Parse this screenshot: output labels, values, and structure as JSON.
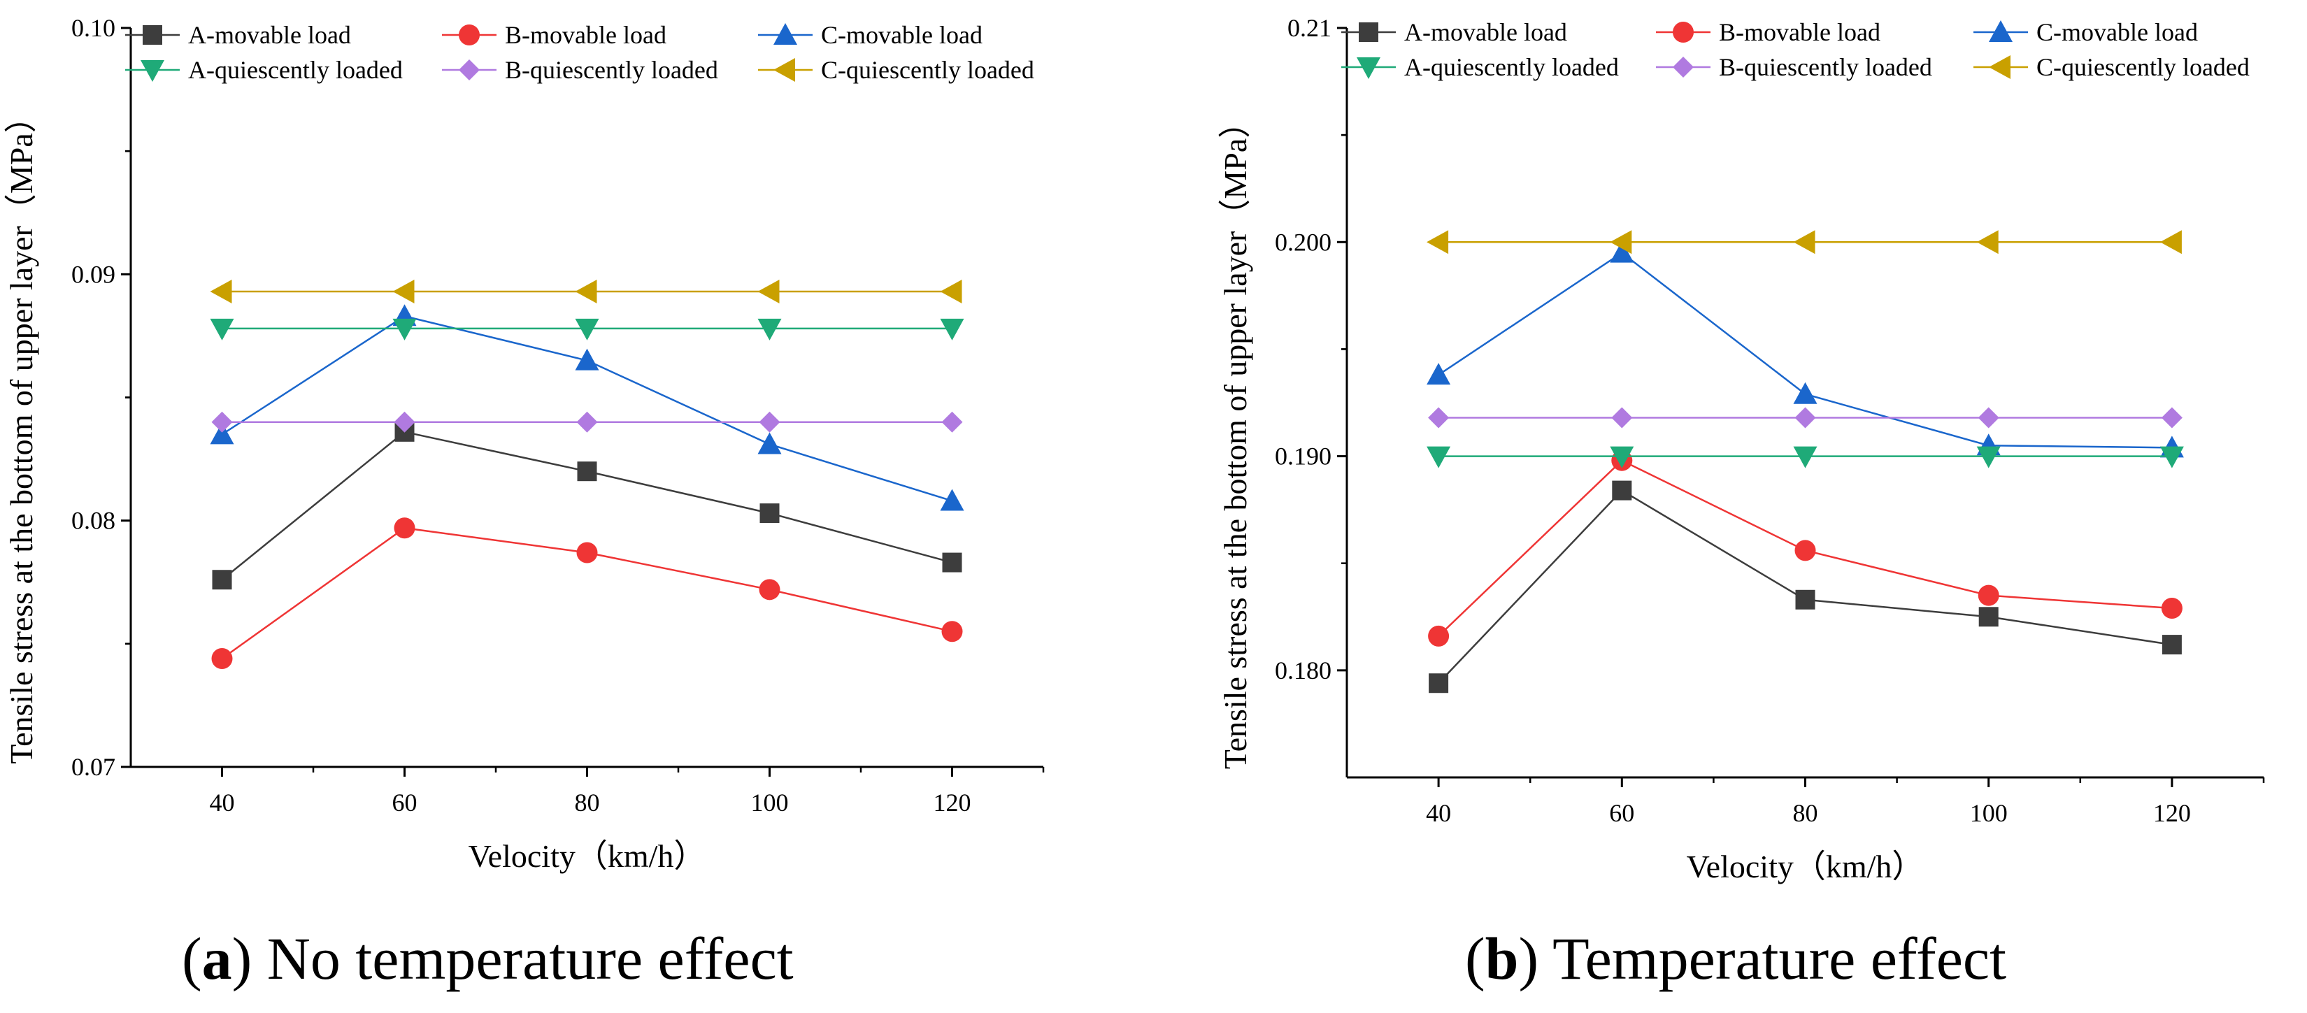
{
  "series_styles": [
    {
      "key": "A-movable load",
      "color": "#3d3d3d",
      "marker": "square"
    },
    {
      "key": "B-movable load",
      "color": "#ef3535",
      "marker": "circle"
    },
    {
      "key": "C-movable load",
      "color": "#1a66cc",
      "marker": "triangle-up"
    },
    {
      "key": "A-quiescently loaded",
      "color": "#1faa78",
      "marker": "triangle-down"
    },
    {
      "key": "B-quiescently loaded",
      "color": "#b07ae0",
      "marker": "diamond"
    },
    {
      "key": "C-quiescently loaded",
      "color": "#c9a000",
      "marker": "triangle-left"
    }
  ],
  "chart_data": [
    {
      "type": "line",
      "caption_letter": "a",
      "caption_text": "No temperature effect",
      "xlabel": "Velocity（km/h）",
      "ylabel": "Tensile stress at the bottom of upper layer（MPa）",
      "x": [
        40,
        60,
        80,
        100,
        120
      ],
      "xticks": [
        "40",
        "60",
        "80",
        "100",
        "120"
      ],
      "xlim": [
        30,
        130
      ],
      "ylim": [
        0.07,
        0.1
      ],
      "yticks": [
        "0.07",
        "0.08",
        "0.09",
        "0.10"
      ],
      "yticks_values": [
        0.07,
        0.08,
        0.09,
        0.1
      ],
      "legend": "top",
      "series": [
        {
          "name": "A-movable load",
          "values": [
            0.0776,
            0.0836,
            0.082,
            0.0803,
            0.0783
          ]
        },
        {
          "name": "B-movable load",
          "values": [
            0.0744,
            0.0797,
            0.0787,
            0.0772,
            0.0755
          ]
        },
        {
          "name": "C-movable load",
          "values": [
            0.0835,
            0.0883,
            0.0865,
            0.0831,
            0.0808
          ]
        },
        {
          "name": "A-quiescently loaded",
          "values": [
            0.0878,
            0.0878,
            0.0878,
            0.0878,
            0.0878
          ]
        },
        {
          "name": "B-quiescently loaded",
          "values": [
            0.084,
            0.084,
            0.084,
            0.084,
            0.084
          ]
        },
        {
          "name": "C-quiescently loaded",
          "values": [
            0.0893,
            0.0893,
            0.0893,
            0.0893,
            0.0893
          ]
        }
      ]
    },
    {
      "type": "line",
      "caption_letter": "b",
      "caption_text": "Temperature effect",
      "xlabel": "Velocity（km/h）",
      "ylabel": "Tensile stress at the bottom of upper layer（MPa）",
      "x": [
        40,
        60,
        80,
        100,
        120
      ],
      "xticks": [
        "40",
        "60",
        "80",
        "100",
        "120"
      ],
      "xlim": [
        30,
        130
      ],
      "ylim": [
        0.175,
        0.21
      ],
      "yticks": [
        "0.180",
        "0.190",
        "0.200",
        "0.21"
      ],
      "yticks_values": [
        0.18,
        0.19,
        0.2,
        0.21
      ],
      "legend": "top",
      "series": [
        {
          "name": "A-movable load",
          "values": [
            0.1794,
            0.1884,
            0.1833,
            0.1825,
            0.1812
          ]
        },
        {
          "name": "B-movable load",
          "values": [
            0.1816,
            0.1898,
            0.1856,
            0.1835,
            0.1829
          ]
        },
        {
          "name": "C-movable load",
          "values": [
            0.1938,
            0.1995,
            0.1929,
            0.1905,
            0.1904
          ]
        },
        {
          "name": "A-quiescently loaded",
          "values": [
            0.19,
            0.19,
            0.19,
            0.19,
            0.19
          ]
        },
        {
          "name": "B-quiescently loaded",
          "values": [
            0.1918,
            0.1918,
            0.1918,
            0.1918,
            0.1918
          ]
        },
        {
          "name": "C-quiescently loaded",
          "values": [
            0.2,
            0.2,
            0.2,
            0.2,
            0.2
          ]
        }
      ]
    }
  ]
}
